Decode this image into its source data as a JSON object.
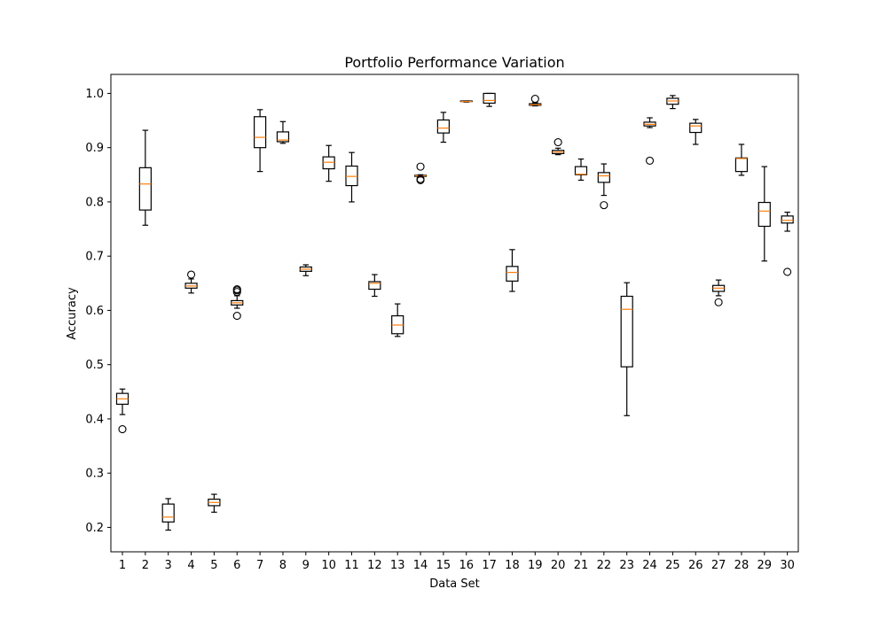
{
  "chart_data": {
    "type": "box",
    "title": "Portfolio Performance Variation",
    "xlabel": "Data Set",
    "ylabel": "Accuracy",
    "ylim": [
      0.155,
      1.035
    ],
    "yticks": [
      0.2,
      0.3,
      0.4,
      0.5,
      0.6,
      0.7,
      0.8,
      0.9,
      1.0
    ],
    "ytick_labels": [
      "0.2",
      "0.3",
      "0.4",
      "0.5",
      "0.6",
      "0.7",
      "0.8",
      "0.9",
      "1.0"
    ],
    "categories": [
      "1",
      "2",
      "3",
      "4",
      "5",
      "6",
      "7",
      "8",
      "9",
      "10",
      "11",
      "12",
      "13",
      "14",
      "15",
      "16",
      "17",
      "18",
      "19",
      "20",
      "21",
      "22",
      "23",
      "24",
      "25",
      "26",
      "27",
      "28",
      "29",
      "30"
    ],
    "grid": false,
    "colors": {
      "box": "#000000",
      "median": "#ff7f0e",
      "outlier": "#000000",
      "background": "#ffffff"
    },
    "boxes": [
      {
        "whislo": 0.408,
        "q1": 0.427,
        "med": 0.437,
        "q3": 0.447,
        "whishi": 0.455,
        "fliers": [
          0.381
        ]
      },
      {
        "whislo": 0.757,
        "q1": 0.785,
        "med": 0.833,
        "q3": 0.863,
        "whishi": 0.932,
        "fliers": []
      },
      {
        "whislo": 0.195,
        "q1": 0.21,
        "med": 0.219,
        "q3": 0.243,
        "whishi": 0.253,
        "fliers": []
      },
      {
        "whislo": 0.632,
        "q1": 0.641,
        "med": 0.645,
        "q3": 0.65,
        "whishi": 0.658,
        "fliers": [
          0.666
        ]
      },
      {
        "whislo": 0.228,
        "q1": 0.24,
        "med": 0.246,
        "q3": 0.252,
        "whishi": 0.261,
        "fliers": []
      },
      {
        "whislo": 0.604,
        "q1": 0.61,
        "med": 0.614,
        "q3": 0.618,
        "whishi": 0.627,
        "fliers": [
          0.59,
          0.634,
          0.637,
          0.639
        ]
      },
      {
        "whislo": 0.856,
        "q1": 0.9,
        "med": 0.919,
        "q3": 0.957,
        "whishi": 0.97,
        "fliers": []
      },
      {
        "whislo": 0.908,
        "q1": 0.911,
        "med": 0.914,
        "q3": 0.929,
        "whishi": 0.948,
        "fliers": []
      },
      {
        "whislo": 0.664,
        "q1": 0.672,
        "med": 0.676,
        "q3": 0.68,
        "whishi": 0.684,
        "fliers": []
      },
      {
        "whislo": 0.838,
        "q1": 0.861,
        "med": 0.873,
        "q3": 0.883,
        "whishi": 0.904,
        "fliers": []
      },
      {
        "whislo": 0.8,
        "q1": 0.83,
        "med": 0.847,
        "q3": 0.866,
        "whishi": 0.891,
        "fliers": []
      },
      {
        "whislo": 0.626,
        "q1": 0.639,
        "med": 0.65,
        "q3": 0.653,
        "whishi": 0.666,
        "fliers": []
      },
      {
        "whislo": 0.552,
        "q1": 0.557,
        "med": 0.573,
        "q3": 0.59,
        "whishi": 0.612,
        "fliers": []
      },
      {
        "whislo": 0.846,
        "q1": 0.847,
        "med": 0.848,
        "q3": 0.849,
        "whishi": 0.85,
        "fliers": [
          0.84,
          0.842,
          0.865
        ]
      },
      {
        "whislo": 0.91,
        "q1": 0.927,
        "med": 0.936,
        "q3": 0.951,
        "whishi": 0.965,
        "fliers": []
      },
      {
        "whislo": 0.984,
        "q1": 0.985,
        "med": 0.985,
        "q3": 0.986,
        "whishi": 0.986,
        "fliers": []
      },
      {
        "whislo": 0.976,
        "q1": 0.982,
        "med": 0.987,
        "q3": 1.0,
        "whishi": 1.0,
        "fliers": []
      },
      {
        "whislo": 0.635,
        "q1": 0.654,
        "med": 0.67,
        "q3": 0.681,
        "whishi": 0.712,
        "fliers": []
      },
      {
        "whislo": 0.977,
        "q1": 0.978,
        "med": 0.979,
        "q3": 0.981,
        "whishi": 0.983,
        "fliers": [
          0.99
        ]
      },
      {
        "whislo": 0.887,
        "q1": 0.889,
        "med": 0.892,
        "q3": 0.895,
        "whishi": 0.899,
        "fliers": [
          0.91
        ]
      },
      {
        "whislo": 0.84,
        "q1": 0.85,
        "med": 0.851,
        "q3": 0.865,
        "whishi": 0.879,
        "fliers": []
      },
      {
        "whislo": 0.812,
        "q1": 0.836,
        "med": 0.848,
        "q3": 0.854,
        "whishi": 0.87,
        "fliers": [
          0.794
        ]
      },
      {
        "whislo": 0.406,
        "q1": 0.496,
        "med": 0.602,
        "q3": 0.626,
        "whishi": 0.651,
        "fliers": []
      },
      {
        "whislo": 0.937,
        "q1": 0.94,
        "med": 0.943,
        "q3": 0.947,
        "whishi": 0.955,
        "fliers": [
          0.876
        ]
      },
      {
        "whislo": 0.972,
        "q1": 0.98,
        "med": 0.986,
        "q3": 0.991,
        "whishi": 0.996,
        "fliers": []
      },
      {
        "whislo": 0.906,
        "q1": 0.928,
        "med": 0.94,
        "q3": 0.945,
        "whishi": 0.952,
        "fliers": []
      },
      {
        "whislo": 0.627,
        "q1": 0.635,
        "med": 0.641,
        "q3": 0.646,
        "whishi": 0.656,
        "fliers": [
          0.615
        ]
      },
      {
        "whislo": 0.849,
        "q1": 0.856,
        "med": 0.88,
        "q3": 0.881,
        "whishi": 0.906,
        "fliers": []
      },
      {
        "whislo": 0.691,
        "q1": 0.755,
        "med": 0.783,
        "q3": 0.799,
        "whishi": 0.865,
        "fliers": []
      },
      {
        "whislo": 0.746,
        "q1": 0.761,
        "med": 0.766,
        "q3": 0.774,
        "whishi": 0.781,
        "fliers": [
          0.671
        ]
      }
    ]
  }
}
